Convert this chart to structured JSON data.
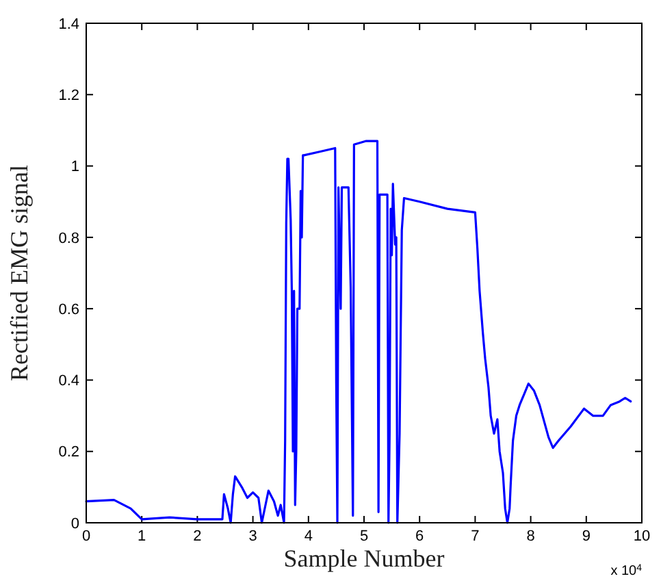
{
  "chart_data": {
    "type": "line",
    "xlabel": "Sample Number",
    "ylabel": "Rectified EMG signal",
    "annotations": [
      "x 10$^{4}$"
    ],
    "xlim": [
      0,
      10
    ],
    "xticks": [
      0,
      1,
      2,
      3,
      4,
      5,
      6,
      7,
      8,
      9,
      10
    ],
    "ylim": [
      0,
      1.4
    ],
    "yticks": [
      0,
      0.2,
      0.4,
      0.6,
      0.8,
      1,
      1.2,
      1.4
    ],
    "grid": false,
    "marker": "none",
    "line_style": "solid",
    "series": [
      {
        "color": "#0000ff",
        "x": [
          0,
          0.5,
          0.8,
          1.0,
          1.5,
          2.0,
          2.45,
          2.48,
          2.55,
          2.6,
          2.64,
          2.68,
          2.8,
          2.9,
          3.0,
          3.1,
          3.16,
          3.24,
          3.28,
          3.38,
          3.45,
          3.5,
          3.56,
          3.58,
          3.6,
          3.62,
          3.64,
          3.68,
          3.7,
          3.72,
          3.74,
          3.76,
          3.78,
          3.8,
          3.84,
          3.86,
          3.88,
          3.9,
          3.92,
          4.2,
          4.48,
          4.5,
          4.52,
          4.54,
          4.58,
          4.6,
          4.72,
          4.76,
          4.8,
          4.82,
          5.04,
          5.24,
          5.26,
          5.28,
          5.42,
          5.44,
          5.46,
          5.48,
          5.5,
          5.52,
          5.56,
          5.58,
          5.6,
          5.64,
          5.68,
          5.72,
          6.0,
          6.5,
          7.0,
          7.04,
          7.08,
          7.14,
          7.18,
          7.24,
          7.28,
          7.34,
          7.4,
          7.44,
          7.5,
          7.54,
          7.58,
          7.62,
          7.64,
          7.68,
          7.74,
          7.8,
          7.88,
          7.96,
          8.06,
          8.16,
          8.32,
          8.4,
          8.5,
          8.72,
          8.96,
          9.12,
          9.3,
          9.44,
          9.6,
          9.7,
          9.8
        ],
        "values": [
          0.06,
          0.064,
          0.04,
          0.01,
          0.015,
          0.01,
          0.01,
          0.08,
          0.04,
          0,
          0.08,
          0.13,
          0.1,
          0.07,
          0.085,
          0.07,
          0,
          0.06,
          0.09,
          0.06,
          0.02,
          0.05,
          0,
          0.23,
          0.84,
          1.02,
          1.02,
          0.85,
          0.65,
          0.2,
          0.65,
          0.05,
          0.2,
          0.6,
          0.6,
          0.93,
          0.8,
          1.03,
          1.03,
          1.04,
          1.05,
          0.39,
          0,
          0.94,
          0.6,
          0.94,
          0.94,
          0.66,
          0.02,
          1.06,
          1.07,
          1.07,
          0.03,
          0.92,
          0.92,
          0,
          0.25,
          0.88,
          0.75,
          0.95,
          0.78,
          0.8,
          0,
          0.25,
          0.82,
          0.91,
          0.9,
          0.88,
          0.87,
          0.77,
          0.65,
          0.53,
          0.46,
          0.38,
          0.3,
          0.25,
          0.29,
          0.2,
          0.14,
          0.04,
          0,
          0.04,
          0.11,
          0.23,
          0.3,
          0.33,
          0.36,
          0.39,
          0.37,
          0.33,
          0.24,
          0.21,
          0.23,
          0.27,
          0.32,
          0.3,
          0.3,
          0.33,
          0.34,
          0.35,
          0.34
        ]
      }
    ]
  }
}
